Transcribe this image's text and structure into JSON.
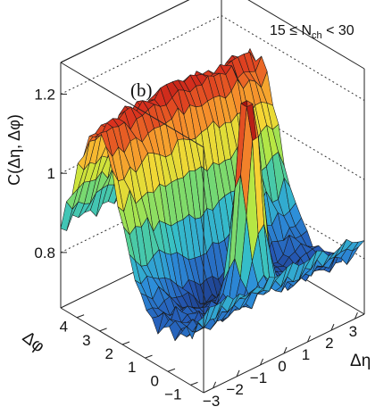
{
  "chart_data": {
    "type": "surface3d",
    "panel_label": "(b)",
    "annotation": "15 ≤ N",
    "annotation_sub": "ch",
    "annotation_tail": " < 30",
    "z_axis": {
      "label": "C(Δη, Δφ)",
      "ticks": [
        "0.8",
        "1",
        "1.2"
      ],
      "tick_values": [
        0.8,
        1.0,
        1.2
      ],
      "range": [
        0.66,
        1.28
      ]
    },
    "x_axis": {
      "label": "Δη",
      "ticks": [
        "−3",
        "−2",
        "−1",
        "0",
        "1",
        "2",
        "3"
      ],
      "tick_values": [
        -3,
        -2,
        -1,
        0,
        1,
        2,
        3
      ],
      "range": [
        -3.4,
        3.4
      ]
    },
    "y_axis": {
      "label": "Δφ",
      "ticks": [
        "−1",
        "0",
        "1",
        "2",
        "3",
        "4"
      ],
      "tick_values": [
        -1,
        0,
        1,
        2,
        3,
        4
      ],
      "range": [
        -1.57,
        4.71
      ]
    },
    "surface": {
      "near_side_peak": {
        "eta": 0.0,
        "phi": 0.0,
        "value": 1.26,
        "note": "truncated near-side jet peak"
      },
      "away_side_ridge": {
        "phi": 3.14,
        "value": 1.17,
        "note": "broad away-side ridge across Δη"
      },
      "minimum": {
        "phi": 1.2,
        "value": 0.68
      }
    },
    "grid": false,
    "colormap": "rainbow",
    "colors": [
      "#19306e",
      "#2559b5",
      "#2d8ed9",
      "#36c0c8",
      "#5fd482",
      "#bfe83e",
      "#f6d534",
      "#f58a2b",
      "#d9311e",
      "#a51410"
    ]
  }
}
